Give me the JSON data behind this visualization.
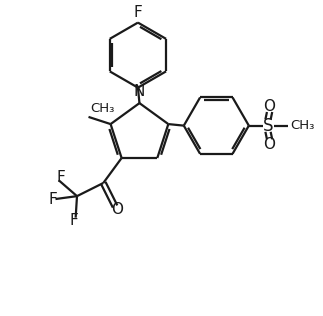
{
  "bg_color": "#ffffff",
  "line_color": "#1a1a1a",
  "line_width": 1.6,
  "dpi": 100,
  "figsize": [
    3.23,
    3.16
  ],
  "xlim": [
    0,
    10
  ],
  "ylim": [
    0,
    10
  ]
}
